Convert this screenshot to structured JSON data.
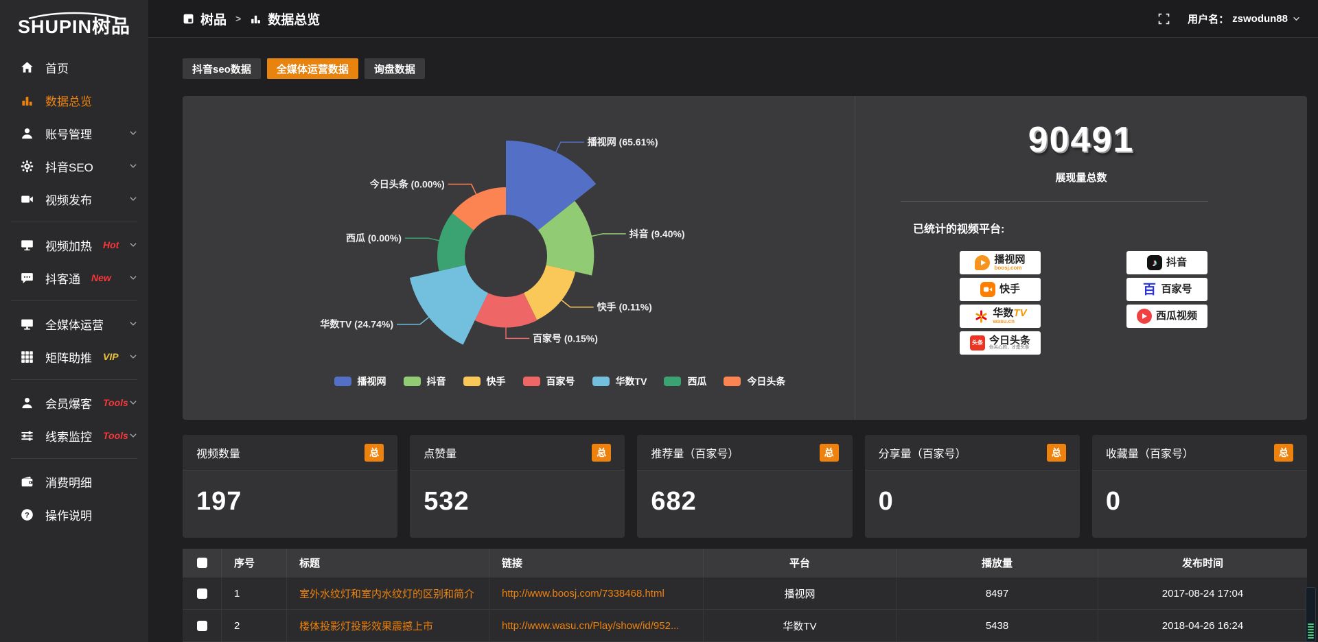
{
  "brand": {
    "name": "SHUPIN树品"
  },
  "topbar": {
    "breadcrumb": {
      "root": "树品",
      "separator": ">",
      "current": "数据总览"
    },
    "user_label": "用户名：",
    "username": "zswodun88"
  },
  "sidebar": {
    "items": [
      {
        "id": "home",
        "label": "首页",
        "icon": "home"
      },
      {
        "id": "data-overview",
        "label": "数据总览",
        "icon": "chart",
        "active": true
      },
      {
        "id": "account-manage",
        "label": "账号管理",
        "icon": "user",
        "chevron": true
      },
      {
        "id": "douyin-seo",
        "label": "抖音SEO",
        "icon": "gear",
        "chevron": true
      },
      {
        "id": "video-publish",
        "label": "视频发布",
        "icon": "video",
        "chevron": true
      },
      {
        "divider": true
      },
      {
        "id": "video-heat",
        "label": "视频加热",
        "icon": "heat",
        "tag": "Hot",
        "tag_color": "#f5383d",
        "chevron": true
      },
      {
        "id": "douketong",
        "label": "抖客通",
        "icon": "chat",
        "tag": "New",
        "tag_color": "#f5383d",
        "chevron": true
      },
      {
        "divider": true
      },
      {
        "id": "media-operation",
        "label": "全媒体运营",
        "icon": "monitor",
        "chevron": true
      },
      {
        "id": "matrix-boost",
        "label": "矩阵助推",
        "icon": "grid",
        "tag": "VIP",
        "tag_color": "#edc33d",
        "chevron": true
      },
      {
        "divider": true
      },
      {
        "id": "member-baoke",
        "label": "会员爆客",
        "icon": "member",
        "tag": "Tools",
        "tag_color": "#f5383d",
        "chevron": true
      },
      {
        "id": "clue-monitor",
        "label": "线索监控",
        "icon": "sliders",
        "tag": "Tools",
        "tag_color": "#f5383d",
        "chevron": true
      },
      {
        "divider": true
      },
      {
        "id": "consume-detail",
        "label": "消费明细",
        "icon": "wallet"
      },
      {
        "id": "operation-guide",
        "label": "操作说明",
        "icon": "question"
      }
    ]
  },
  "tabs": [
    {
      "label": "抖音seo数据",
      "active": false
    },
    {
      "label": "全媒体运营数据",
      "active": true
    },
    {
      "label": "询盘数据",
      "active": false
    }
  ],
  "chart_data": {
    "type": "pie",
    "style": "rose",
    "categories": [
      "播视网",
      "抖音",
      "快手",
      "百家号",
      "华数TV",
      "西瓜",
      "今日头条"
    ],
    "values": [
      65.61,
      9.4,
      0.11,
      0.15,
      24.74,
      0.0,
      0.0
    ],
    "unit": "percent",
    "labels": [
      "播视网 (65.61%)",
      "抖音 (9.40%)",
      "快手 (0.11%)",
      "百家号 (0.15%)",
      "华数TV (24.74%)",
      "西瓜 (0.00%)",
      "今日头条 (0.00%)"
    ],
    "colors": [
      "#5470c6",
      "#91cc75",
      "#fac858",
      "#ee6666",
      "#73c0de",
      "#3ba272",
      "#fc8452"
    ],
    "legend_position": "bottom"
  },
  "summary": {
    "total_value": "90491",
    "total_label": "展现量总数",
    "platforms_title": "已统计的视频平台:",
    "platform_columns": [
      [
        {
          "name": "播视网",
          "sub": "boosj.com",
          "icon": "boosj"
        },
        {
          "name": "快手",
          "icon": "kuaishou"
        },
        {
          "name": "华数TV",
          "sub": "wasu.cn",
          "icon": "wasu"
        },
        {
          "name": "今日头条",
          "sub": "你关心的，才是头条",
          "icon": "toutiao"
        }
      ],
      [
        {
          "name": "抖音",
          "icon": "douyin"
        },
        {
          "name": "百家号",
          "icon": "baijiahao"
        },
        {
          "name": "西瓜视频",
          "icon": "xigua"
        }
      ]
    ]
  },
  "stat_cards": [
    {
      "title": "视频数量",
      "badge": "总",
      "value": "197"
    },
    {
      "title": "点赞量",
      "badge": "总",
      "value": "532"
    },
    {
      "title": "推荐量（百家号）",
      "badge": "总",
      "value": "682"
    },
    {
      "title": "分享量（百家号）",
      "badge": "总",
      "value": "0"
    },
    {
      "title": "收藏量（百家号）",
      "badge": "总",
      "value": "0"
    }
  ],
  "table": {
    "headers": [
      "序号",
      "标题",
      "链接",
      "平台",
      "播放量",
      "发布时间"
    ],
    "rows": [
      {
        "checked": false,
        "seq": "1",
        "title": "室外水纹灯和室内水纹灯的区别和简介",
        "link": "http://www.boosj.com/7338468.html",
        "platform": "播视网",
        "plays": "8497",
        "time": "2017-08-24 17:04"
      },
      {
        "checked": false,
        "seq": "2",
        "title": "楼体投影灯投影效果震撼上市",
        "link": "http://www.wasu.cn/Play/show/id/952...",
        "platform": "华数TV",
        "plays": "5438",
        "time": "2018-04-26 16:24"
      }
    ]
  },
  "colors": {
    "accent": "#ee820e",
    "panel": "#3a3a3c",
    "link": "#ee820e",
    "tag_red": "#f5383d",
    "tag_vip": "#edc33d"
  }
}
